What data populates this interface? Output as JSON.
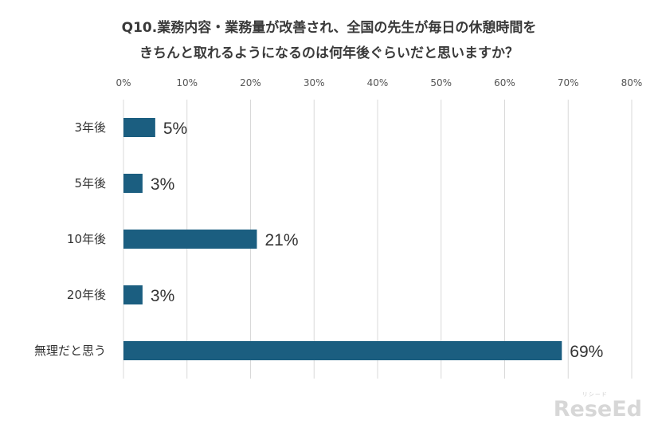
{
  "chart_data": {
    "type": "bar",
    "orientation": "horizontal",
    "title_lines": [
      "Q10.業務内容・業務量が改善され、全国の先生が毎日の休憩時間を",
      "きちんと取れるようになるのは何年後ぐらいだと思いますか？"
    ],
    "categories": [
      "3年後",
      "5年後",
      "10年後",
      "20年後",
      "無理だと思う"
    ],
    "values": [
      5,
      3,
      21,
      3,
      69
    ],
    "value_labels": [
      "5%",
      "3%",
      "21%",
      "3%",
      "69%"
    ],
    "xlim": [
      0,
      80
    ],
    "x_ticks": [
      0,
      10,
      20,
      30,
      40,
      50,
      60,
      70,
      80
    ],
    "x_tick_labels": [
      "0%",
      "10%",
      "20%",
      "30%",
      "40%",
      "50%",
      "60%",
      "70%",
      "80%"
    ],
    "x_axis_position": "top",
    "grid": true,
    "legend": "none",
    "bar_color": "#1b5e80",
    "grid_color": "#d9d9d9"
  },
  "watermark": {
    "text": "ReseEd",
    "subtext": "リシード"
  }
}
